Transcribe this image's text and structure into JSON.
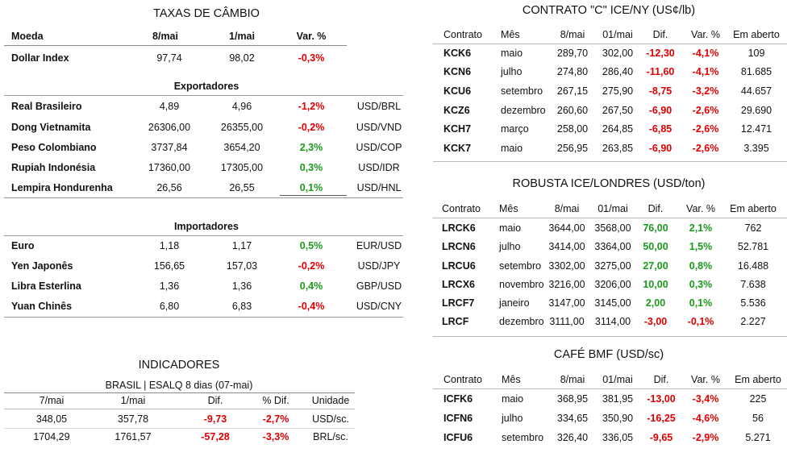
{
  "fx": {
    "title": "TAXAS DE CÂMBIO",
    "header": [
      "Moeda",
      "8/mai",
      "1/mai",
      "Var. %"
    ],
    "rows": [
      [
        "Dollar Index",
        "97,74",
        "98,02",
        "-0,3%"
      ]
    ],
    "sections": [
      {
        "title": "Exportadores",
        "rows": [
          [
            "Real Brasileiro",
            "4,89",
            "4,96",
            "-1,2%",
            "USD/BRL"
          ],
          [
            "Dong Vietnamita",
            "26306,00",
            "26355,00",
            "-0,2%",
            "USD/VND"
          ],
          [
            "Peso Colombiano",
            "3737,84",
            "3654,20",
            "2,3%",
            "USD/COP"
          ],
          [
            "Rupiah Indonésia",
            "17360,00",
            "17305,00",
            "0,3%",
            "USD/IDR"
          ],
          [
            "Lempira Hondurenha",
            "26,56",
            "26,55",
            "0,1%",
            "USD/HNL"
          ]
        ]
      },
      {
        "title": "Importadores",
        "rows": [
          [
            "Euro",
            "1,18",
            "1,17",
            "0,5%",
            "EUR/USD"
          ],
          [
            "Yen Japonês",
            "156,65",
            "157,03",
            "-0,2%",
            "USD/JPY"
          ],
          [
            "Libra Esterlina",
            "1,36",
            "1,36",
            "0,4%",
            "GBP/USD"
          ],
          [
            "Yuan Chinês",
            "6,80",
            "6,83",
            "-0,4%",
            "USD/CNY"
          ]
        ]
      }
    ]
  },
  "indicators": {
    "title": "INDICADORES",
    "subtitle": "BRASIL | ESALQ 8 dias (07-mai)",
    "header": [
      "7/mai",
      "1/mai",
      "Dif.",
      "% Dif.",
      "Unidade"
    ],
    "rows": [
      [
        "348,05",
        "357,78",
        "-9,73",
        "-2,7%",
        "USD/sc."
      ],
      [
        "1704,29",
        "1761,57",
        "-57,28",
        "-3,3%",
        "BRL/sc."
      ]
    ]
  },
  "ice_ny": {
    "title": "CONTRATO \"C\" ICE/NY (US¢/lb)",
    "header": [
      "Contrato",
      "Mês",
      "8/mai",
      "01/mai",
      "Dif.",
      "Var. %",
      "Em aberto"
    ],
    "rows": [
      [
        "KCK6",
        "maio",
        "289,70",
        "302,00",
        "-12,30",
        "-4,1%",
        "109"
      ],
      [
        "KCN6",
        "julho",
        "274,80",
        "286,40",
        "-11,60",
        "-4,1%",
        "81.685"
      ],
      [
        "KCU6",
        "setembro",
        "267,15",
        "275,90",
        "-8,75",
        "-3,2%",
        "44.657"
      ],
      [
        "KCZ6",
        "dezembro",
        "260,60",
        "267,50",
        "-6,90",
        "-2,6%",
        "29.690"
      ],
      [
        "KCH7",
        "março",
        "258,00",
        "264,85",
        "-6,85",
        "-2,6%",
        "12.471"
      ],
      [
        "KCK7",
        "maio",
        "256,95",
        "263,85",
        "-6,90",
        "-2,6%",
        "3.395"
      ]
    ]
  },
  "ice_london": {
    "title": "ROBUSTA ICE/LONDRES (USD/ton)",
    "header": [
      "Contrato",
      "Mês",
      "8/mai",
      "01/mai",
      "Dif.",
      "Var. %",
      "Em aberto"
    ],
    "rows": [
      [
        "LRCK6",
        "maio",
        "3644,00",
        "3568,00",
        "76,00",
        "2,1%",
        "762"
      ],
      [
        "LRCN6",
        "julho",
        "3414,00",
        "3364,00",
        "50,00",
        "1,5%",
        "52.781"
      ],
      [
        "LRCU6",
        "setembro",
        "3302,00",
        "3275,00",
        "27,00",
        "0,8%",
        "16.488"
      ],
      [
        "LRCX6",
        "novembro",
        "3216,00",
        "3206,00",
        "10,00",
        "0,3%",
        "7.638"
      ],
      [
        "LRCF7",
        "janeiro",
        "3147,00",
        "3145,00",
        "2,00",
        "0,1%",
        "5.536"
      ],
      [
        "LRCF",
        "dezembro",
        "3111,00",
        "3114,00",
        "-3,00",
        "-0,1%",
        "2.227"
      ]
    ]
  },
  "bmf": {
    "title": "CAFÉ BMF (USD/sc)",
    "header": [
      "Contrato",
      "Mês",
      "8/mai",
      "01/mai",
      "Dif.",
      "Var. %",
      "Em aberto"
    ],
    "rows": [
      [
        "ICFK6",
        "maio",
        "368,95",
        "381,95",
        "-13,00",
        "-3,4%",
        "225"
      ],
      [
        "ICFN6",
        "julho",
        "334,65",
        "350,90",
        "-16,25",
        "-4,6%",
        "56"
      ],
      [
        "ICFU6",
        "setembro",
        "326,40",
        "336,05",
        "-9,65",
        "-2,9%",
        "5.271"
      ]
    ]
  }
}
